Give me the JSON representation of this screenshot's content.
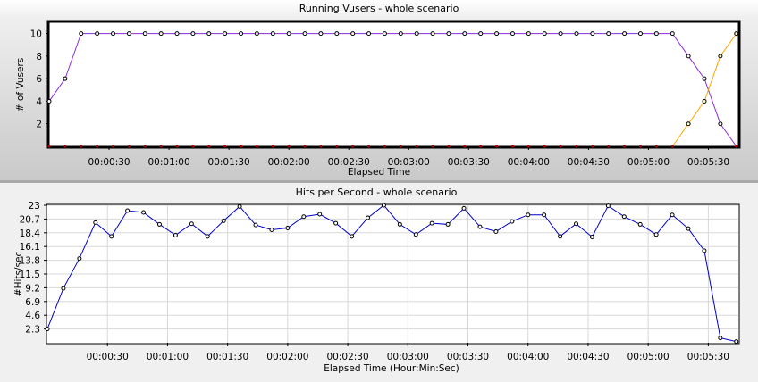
{
  "chart_data": [
    {
      "type": "line",
      "title": "Running Vusers - whole scenario",
      "xlabel": "Elapsed Time",
      "ylabel": "# of Vusers",
      "xlim_sec": [
        0,
        345
      ],
      "ylim": [
        0,
        11
      ],
      "grid": false,
      "x_ticks": [
        "00:00:30",
        "00:01:00",
        "00:01:30",
        "00:02:00",
        "00:02:30",
        "00:03:00",
        "00:03:30",
        "00:04:00",
        "00:04:30",
        "00:05:00",
        "00:05:30"
      ],
      "y_ticks": [
        2,
        4,
        6,
        8,
        10
      ],
      "series": [
        {
          "color": "#8a2be2",
          "x_sec": [
            0,
            8,
            16,
            24,
            32,
            40,
            48,
            56,
            64,
            72,
            80,
            88,
            96,
            104,
            112,
            120,
            128,
            136,
            144,
            152,
            160,
            168,
            176,
            184,
            192,
            200,
            208,
            216,
            224,
            232,
            240,
            248,
            256,
            264,
            272,
            280,
            288,
            296,
            304,
            312,
            320,
            328,
            336,
            344
          ],
          "values": [
            4,
            6,
            10,
            10,
            10,
            10,
            10,
            10,
            10,
            10,
            10,
            10,
            10,
            10,
            10,
            10,
            10,
            10,
            10,
            10,
            10,
            10,
            10,
            10,
            10,
            10,
            10,
            10,
            10,
            10,
            10,
            10,
            10,
            10,
            10,
            10,
            10,
            10,
            10,
            10,
            8,
            6,
            2,
            0
          ]
        },
        {
          "color": "#ffa500",
          "x_sec": [
            0,
            8,
            16,
            24,
            32,
            40,
            48,
            56,
            64,
            72,
            80,
            88,
            96,
            104,
            112,
            120,
            128,
            136,
            144,
            152,
            160,
            168,
            176,
            184,
            192,
            200,
            208,
            216,
            224,
            232,
            240,
            248,
            256,
            264,
            272,
            280,
            288,
            296,
            304,
            312,
            320,
            328,
            336,
            344
          ],
          "values": [
            0,
            0,
            0,
            0,
            0,
            0,
            0,
            0,
            0,
            0,
            0,
            0,
            0,
            0,
            0,
            0,
            0,
            0,
            0,
            0,
            0,
            0,
            0,
            0,
            0,
            0,
            0,
            0,
            0,
            0,
            0,
            0,
            0,
            0,
            0,
            0,
            0,
            0,
            0,
            0,
            2,
            4,
            8,
            10
          ]
        }
      ]
    },
    {
      "type": "line",
      "title": "Hits per Second - whole scenario",
      "xlabel": "Elapsed Time (Hour:Min:Sec)",
      "ylabel": "#Hits/sec",
      "xlim_sec": [
        0,
        345
      ],
      "ylim": [
        0,
        23
      ],
      "grid": true,
      "x_ticks": [
        "00:00:30",
        "00:01:00",
        "00:01:30",
        "00:02:00",
        "00:02:30",
        "00:03:00",
        "00:03:30",
        "00:04:00",
        "00:04:30",
        "00:05:00",
        "00:05:30"
      ],
      "y_ticks": [
        "2.3",
        "4.6",
        "6.9",
        "9.2",
        "11.5",
        "13.8",
        "16.1",
        "18.4",
        "20.7",
        "23"
      ],
      "series": [
        {
          "color": "#0000cc",
          "x_sec": [
            0,
            8,
            16,
            24,
            32,
            40,
            48,
            56,
            64,
            72,
            80,
            88,
            96,
            104,
            112,
            120,
            128,
            136,
            144,
            152,
            160,
            168,
            176,
            184,
            192,
            200,
            208,
            216,
            224,
            232,
            240,
            248,
            256,
            264,
            272,
            280,
            288,
            296,
            304,
            312,
            320,
            328,
            336,
            344
          ],
          "values": [
            2.3,
            9.1,
            14.1,
            20.1,
            17.8,
            22.1,
            21.8,
            19.8,
            18.0,
            19.9,
            17.8,
            20.4,
            22.8,
            19.7,
            18.9,
            19.2,
            21.1,
            21.5,
            20.0,
            17.8,
            20.9,
            23.0,
            19.8,
            18.1,
            20.0,
            19.8,
            22.5,
            19.4,
            18.6,
            20.3,
            21.4,
            21.4,
            17.8,
            19.9,
            17.7,
            22.9,
            21.1,
            19.8,
            18.1,
            21.4,
            19.1,
            15.4,
            0.8,
            0.2
          ]
        }
      ]
    }
  ]
}
